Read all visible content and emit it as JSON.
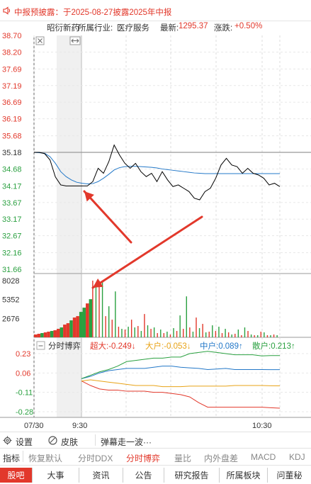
{
  "notice": {
    "text": "中报预披露：于2025-08-27披露2025年中报"
  },
  "info": {
    "name": "昭衍新药",
    "industry_label": "所属行业:",
    "industry": "医疗服务",
    "latest_label": "最新:",
    "latest": "1295.37",
    "change_label": "涨跌:",
    "change": "+0.50%"
  },
  "price_axis": [
    "38.70",
    "38.20",
    "37.69",
    "37.19",
    "36.69",
    "36.19",
    "35.68",
    "35.18",
    "34.68",
    "34.17",
    "33.67",
    "33.17",
    "32.67",
    "32.16",
    "31.66"
  ],
  "volume_axis": [
    "8028",
    "5352",
    "2676"
  ],
  "indicator_axis": [
    "0.23",
    "0.06",
    "-0.11",
    "-0.28"
  ],
  "time_axis": [
    "07/30",
    "9:30",
    "10:30"
  ],
  "indicator_legend": {
    "title": "分时博弈",
    "items": [
      {
        "label": "超大:-0.249",
        "arrow": "↓",
        "color": "#e2382b"
      },
      {
        "label": "大户:-0.053",
        "arrow": "↓",
        "color": "#e8a317"
      },
      {
        "label": "中户:0.089",
        "arrow": "↑",
        "color": "#2378c8"
      },
      {
        "label": "散户:0.213",
        "arrow": "↑",
        "color": "#2aa040"
      }
    ]
  },
  "bottom_bar": {
    "settings": "设置",
    "skin": "皮肤",
    "danmaku": "弹幕走一波···"
  },
  "indicator_tabs": [
    {
      "label": "指标",
      "active": false
    },
    {
      "label": "恢复默认",
      "active": false
    },
    {
      "label": "分时DDX",
      "active": false
    },
    {
      "label": "分时博弈",
      "active": true
    },
    {
      "label": "量比",
      "active": false
    },
    {
      "label": "内外盘差",
      "active": false
    },
    {
      "label": "MACD",
      "active": false
    },
    {
      "label": "KDJ",
      "active": false
    }
  ],
  "main_tabs": [
    {
      "label": "股吧",
      "active": true
    },
    {
      "label": "大事",
      "active": false
    },
    {
      "label": "资讯",
      "active": false
    },
    {
      "label": "公告",
      "active": false
    },
    {
      "label": "研究报告",
      "active": false
    },
    {
      "label": "所属板块",
      "active": false
    },
    {
      "label": "问董秘",
      "active": false
    }
  ],
  "colors": {
    "up": "#e2382b",
    "down": "#2aa040",
    "avg": "#2378c8",
    "price": "#000000"
  },
  "chart_data": {
    "type": "line",
    "prev_close": 35.18,
    "ylim": [
      31.66,
      38.7
    ],
    "price_series": [
      35.18,
      35.18,
      35.14,
      34.95,
      34.44,
      34.2,
      34.17,
      34.17,
      34.17,
      34.17,
      34.17,
      34.3,
      34.7,
      34.55,
      34.9,
      35.4,
      35.1,
      34.85,
      34.7,
      34.85,
      34.6,
      34.45,
      34.55,
      34.3,
      34.6,
      34.35,
      34.15,
      34.2,
      34.1,
      34.0,
      33.8,
      33.75,
      34.0,
      34.1,
      34.4,
      34.8,
      35.0,
      34.8,
      34.75,
      34.55,
      34.7,
      34.55,
      34.5,
      34.4,
      34.2,
      34.25,
      34.15
    ],
    "avg_series": [
      35.18,
      35.17,
      35.15,
      35.05,
      34.85,
      34.6,
      34.45,
      34.35,
      34.28,
      34.25,
      34.23,
      34.24,
      34.3,
      34.4,
      34.52,
      34.65,
      34.72,
      34.75,
      34.76,
      34.76,
      34.75,
      34.74,
      34.73,
      34.71,
      34.68,
      34.66,
      34.64,
      34.62,
      34.6,
      34.58,
      34.56,
      34.55,
      34.54,
      34.54,
      34.54,
      34.54,
      34.54,
      34.54,
      34.54,
      34.54,
      34.54,
      34.54,
      34.54,
      34.54,
      34.54,
      34.54,
      34.54
    ],
    "volume": [
      400,
      500,
      600,
      700,
      800,
      900,
      1000,
      1200,
      1400,
      1800,
      2000,
      2400,
      2800,
      3000,
      3600,
      4200,
      4800,
      5400,
      8028,
      7600,
      8000,
      8028,
      3000,
      4400,
      2500,
      6500,
      1500,
      1200,
      1100,
      1500,
      2500,
      1400,
      1600,
      900,
      3300,
      1700,
      1200,
      1400,
      600,
      1100,
      600,
      800,
      400,
      1300,
      900,
      3100,
      1200,
      5800,
      1400,
      800,
      2800,
      1300,
      1900,
      700,
      800,
      1700,
      900,
      1500,
      600,
      1200,
      700,
      400,
      500,
      1100,
      300,
      1400,
      900,
      400,
      300,
      300,
      800,
      700,
      300,
      300,
      400,
      300
    ],
    "indicator_series": [
      {
        "name": "超大",
        "values": [
          -0.01,
          -0.05,
          -0.08,
          -0.09,
          -0.09,
          -0.1,
          -0.1,
          -0.1,
          -0.11,
          -0.11,
          -0.12,
          -0.13,
          -0.15,
          -0.2,
          -0.24,
          -0.24,
          -0.24,
          -0.24,
          -0.24,
          -0.24,
          -0.24,
          -0.245,
          -0.249
        ]
      },
      {
        "name": "大户",
        "values": [
          -0.01,
          0.0,
          -0.01,
          -0.02,
          -0.03,
          -0.04,
          -0.05,
          -0.05,
          -0.05,
          -0.06,
          -0.06,
          -0.06,
          -0.055,
          -0.055,
          -0.055,
          -0.055,
          -0.055,
          -0.05,
          -0.05,
          -0.05,
          -0.05,
          -0.052,
          -0.053
        ]
      },
      {
        "name": "中户",
        "values": [
          0.01,
          0.03,
          0.06,
          0.08,
          0.09,
          0.1,
          0.1,
          0.1,
          0.11,
          0.12,
          0.12,
          0.11,
          0.105,
          0.1,
          0.09,
          0.095,
          0.1,
          0.09,
          0.09,
          0.09,
          0.09,
          0.089,
          0.089
        ]
      },
      {
        "name": "散户",
        "values": [
          0.01,
          0.04,
          0.07,
          0.09,
          0.12,
          0.16,
          0.17,
          0.18,
          0.19,
          0.19,
          0.2,
          0.2,
          0.23,
          0.24,
          0.25,
          0.24,
          0.23,
          0.22,
          0.22,
          0.22,
          0.21,
          0.213,
          0.213
        ]
      }
    ]
  }
}
